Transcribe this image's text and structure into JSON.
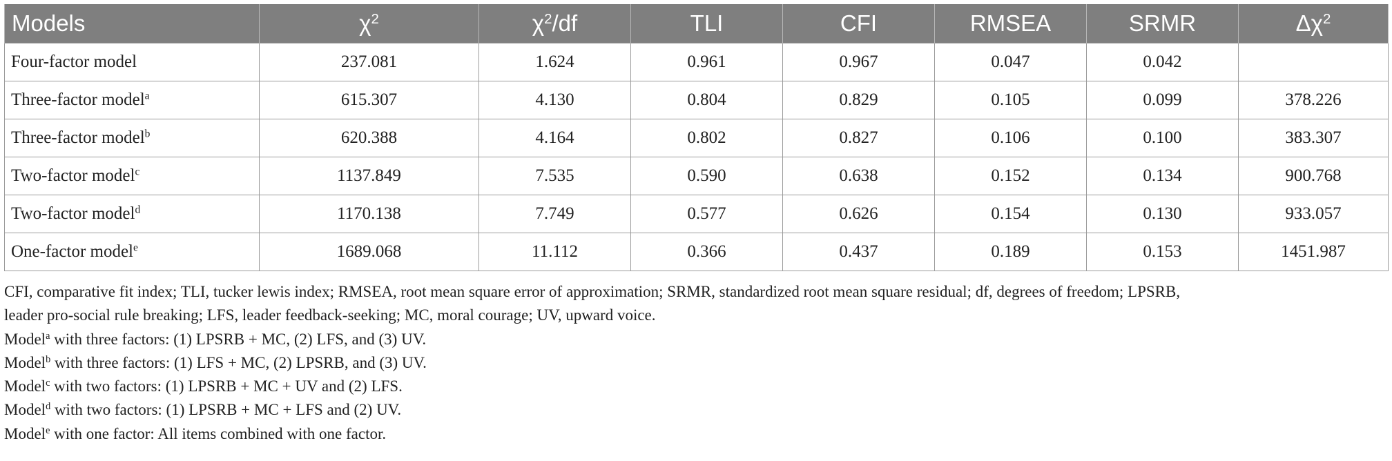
{
  "table": {
    "headers": [
      {
        "text": "Models",
        "sup": ""
      },
      {
        "text": "χ",
        "sup": "2"
      },
      {
        "text": "χ",
        "sup": "2",
        "suffix": "/df"
      },
      {
        "text": "TLI",
        "sup": ""
      },
      {
        "text": "CFI",
        "sup": ""
      },
      {
        "text": "RMSEA",
        "sup": ""
      },
      {
        "text": "SRMR",
        "sup": ""
      },
      {
        "text": "Δχ",
        "sup": "2"
      }
    ],
    "rows": [
      {
        "model": "Four-factor model",
        "sup": "",
        "values": [
          "237.081",
          "1.624",
          "0.961",
          "0.967",
          "0.047",
          "0.042",
          ""
        ]
      },
      {
        "model": "Three-factor model",
        "sup": "a",
        "values": [
          "615.307",
          "4.130",
          "0.804",
          "0.829",
          "0.105",
          "0.099",
          "378.226"
        ]
      },
      {
        "model": "Three-factor model",
        "sup": "b",
        "values": [
          "620.388",
          "4.164",
          "0.802",
          "0.827",
          "0.106",
          "0.100",
          "383.307"
        ]
      },
      {
        "model": "Two-factor model",
        "sup": "c",
        "values": [
          "1137.849",
          "7.535",
          "0.590",
          "0.638",
          "0.152",
          "0.134",
          "900.768"
        ]
      },
      {
        "model": "Two-factor model",
        "sup": "d",
        "values": [
          "1170.138",
          "7.749",
          "0.577",
          "0.626",
          "0.154",
          "0.130",
          "933.057"
        ]
      },
      {
        "model": "One-factor model",
        "sup": "e",
        "values": [
          "1689.068",
          "11.112",
          "0.366",
          "0.437",
          "0.189",
          "0.153",
          "1451.987"
        ]
      }
    ]
  },
  "notes": {
    "abbreviations_line1": "CFI, comparative fit index; TLI, tucker lewis index; RMSEA, root mean square error of approximation; SRMR, standardized root mean square residual; df, degrees of freedom; LPSRB,",
    "abbreviations_line2": "leader pro-social rule breaking; LFS, leader feedback-seeking; MC, moral courage; UV, upward voice.",
    "model_notes": [
      {
        "prefix": "Model",
        "sup": "a",
        "text": " with three factors: (1) LPSRB + MC, (2) LFS, and (3) UV."
      },
      {
        "prefix": "Model",
        "sup": "b",
        "text": " with three factors: (1) LFS + MC, (2) LPSRB, and (3) UV."
      },
      {
        "prefix": "Model",
        "sup": "c",
        "text": " with two factors: (1) LPSRB + MC + UV and (2) LFS."
      },
      {
        "prefix": "Model",
        "sup": "d",
        "text": " with two factors: (1) LPSRB + MC + LFS and (2) UV."
      },
      {
        "prefix": "Model",
        "sup": "e",
        "text": " with one factor: All items combined with one factor."
      }
    ]
  }
}
